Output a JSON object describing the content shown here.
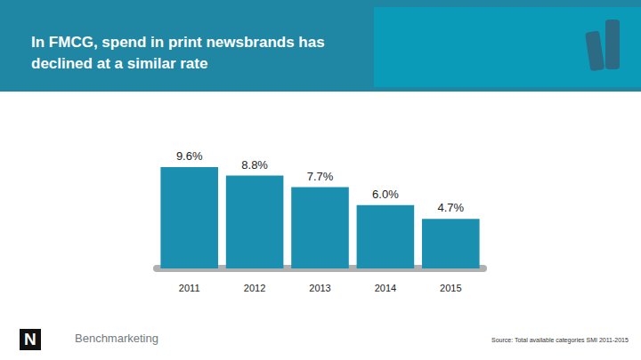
{
  "chart_data": {
    "type": "bar",
    "title": "In FMCG, spend in print newsbrands has declined at a similar rate",
    "categories": [
      "2011",
      "2012",
      "2013",
      "2014",
      "2015"
    ],
    "values": [
      9.6,
      8.8,
      7.7,
      6.0,
      4.7
    ],
    "value_labels": [
      "9.6%",
      "8.8%",
      "7.7%",
      "6.0%",
      "4.7%"
    ],
    "color": "#1a8fb0",
    "data_labels": true,
    "tick_labels": "x",
    "grid": false,
    "source": "Source: Total available categories SMI 2011-2015",
    "logo_text": [
      "N",
      "Benchmarketing"
    ]
  }
}
